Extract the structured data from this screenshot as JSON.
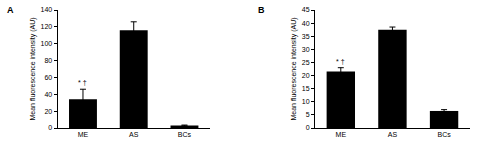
{
  "chart_data": [
    {
      "type": "bar",
      "title": "A",
      "y_label": "Mean fluorescence intensity (AU)",
      "categories": [
        "ME",
        "AS",
        "BCs"
      ],
      "values": [
        34,
        116,
        3
      ],
      "errors": [
        12,
        10,
        0.5
      ],
      "color": "#000000",
      "ylim": [
        0,
        140
      ],
      "yticks": [
        0,
        20,
        40,
        60,
        80,
        100,
        120,
        140
      ],
      "grid": false,
      "annotations": [
        {
          "category": "ME",
          "text": "* †"
        }
      ]
    },
    {
      "type": "bar",
      "title": "B",
      "y_label": "Mean fluorescence intensity (AU)",
      "categories": [
        "ME",
        "AS",
        "BCs"
      ],
      "values": [
        21.5,
        37.5,
        6.5
      ],
      "errors": [
        1.5,
        1,
        0.5
      ],
      "color": "#000000",
      "ylim": [
        0,
        45
      ],
      "yticks": [
        0,
        5,
        10,
        15,
        20,
        25,
        30,
        35,
        40,
        45
      ],
      "grid": false,
      "annotations": [
        {
          "category": "ME",
          "text": "* †"
        }
      ]
    }
  ]
}
